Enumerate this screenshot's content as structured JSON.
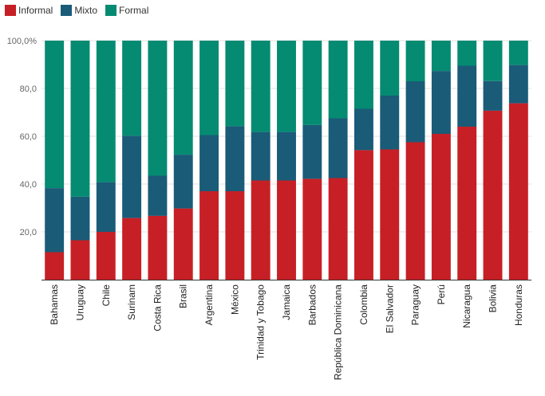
{
  "chart_data": {
    "type": "bar",
    "stacked": true,
    "title": "",
    "xlabel": "",
    "ylabel": "",
    "ylim": [
      0,
      100
    ],
    "yticks": [
      {
        "value": 20,
        "label": "20,0"
      },
      {
        "value": 40,
        "label": "40,0"
      },
      {
        "value": 60,
        "label": "60,0"
      },
      {
        "value": 80,
        "label": "80,0"
      },
      {
        "value": 100,
        "label": "100,0%"
      }
    ],
    "grid": true,
    "legend_position": "top-left",
    "categories": [
      "Bahamas",
      "Uruguay",
      "Chile",
      "Surinam",
      "Costa Rica",
      "Brasil",
      "Argentina",
      "México",
      "Trinidad y Tobago",
      "Jamaica",
      "Barbados",
      "República Dominicana",
      "Colombia",
      "El Salvador",
      "Paraguay",
      "Perú",
      "Nicaragua",
      "Bolivia",
      "Honduras"
    ],
    "series": [
      {
        "name": "Informal",
        "color": "#c62026",
        "values": [
          11.5,
          16.5,
          20.0,
          25.8,
          26.7,
          29.8,
          37.0,
          37.0,
          41.5,
          41.5,
          42.2,
          42.5,
          54.2,
          54.5,
          57.5,
          61.0,
          64.0,
          70.7,
          73.8
        ]
      },
      {
        "name": "Mixto",
        "color": "#1a5b78",
        "values": [
          26.8,
          18.2,
          20.8,
          34.4,
          16.8,
          22.5,
          23.5,
          27.2,
          20.3,
          20.3,
          22.5,
          25.0,
          17.3,
          22.5,
          25.5,
          26.3,
          25.5,
          12.4,
          16.0
        ]
      },
      {
        "name": "Formal",
        "color": "#058b72",
        "values": [
          61.7,
          65.3,
          59.2,
          39.8,
          56.5,
          47.7,
          39.5,
          35.8,
          38.2,
          38.2,
          35.3,
          32.5,
          28.5,
          23.0,
          17.0,
          12.7,
          10.5,
          16.9,
          10.2
        ]
      }
    ]
  }
}
